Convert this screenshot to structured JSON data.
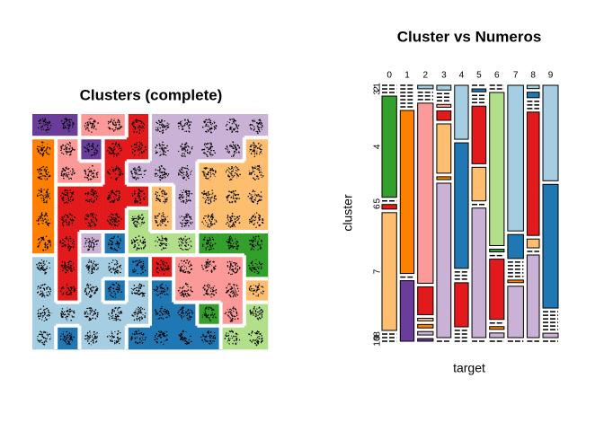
{
  "chart_data": [
    {
      "type": "som",
      "title": "Clusters (complete)",
      "colors": [
        "#A6CEE3",
        "#1F78B4",
        "#B2DF8A",
        "#33A02C",
        "#FB9A99",
        "#E31A1C",
        "#FDBF6F",
        "#FF7F00",
        "#CAB2D6",
        "#6A3D9A"
      ],
      "cells": [
        [
          10,
          10,
          5,
          5,
          6,
          9,
          9,
          9,
          9,
          9
        ],
        [
          8,
          5,
          10,
          6,
          6,
          9,
          9,
          9,
          9,
          7
        ],
        [
          8,
          5,
          5,
          6,
          9,
          9,
          9,
          7,
          7,
          7
        ],
        [
          8,
          6,
          6,
          6,
          6,
          7,
          9,
          7,
          7,
          7
        ],
        [
          8,
          6,
          6,
          6,
          3,
          7,
          9,
          7,
          7,
          7
        ],
        [
          8,
          6,
          9,
          2,
          3,
          3,
          3,
          4,
          4,
          4
        ],
        [
          1,
          6,
          1,
          1,
          2,
          6,
          5,
          5,
          5,
          4
        ],
        [
          1,
          6,
          1,
          2,
          1,
          2,
          5,
          5,
          5,
          7
        ],
        [
          1,
          1,
          1,
          1,
          1,
          2,
          2,
          4,
          5,
          3
        ],
        [
          1,
          2,
          1,
          1,
          2,
          2,
          2,
          2,
          3,
          3
        ]
      ]
    },
    {
      "type": "mosaic",
      "title": "Cluster vs Numeros",
      "xlabel": "target",
      "ylabel": "cluster",
      "categories": [
        "0",
        "1",
        "2",
        "3",
        "4",
        "5",
        "6",
        "7",
        "8",
        "9"
      ],
      "levels": [
        "1",
        "2",
        "3",
        "4",
        "5",
        "6",
        "7",
        "8",
        "9",
        "10"
      ],
      "colors": [
        "#A6CEE3",
        "#1F78B4",
        "#B2DF8A",
        "#33A02C",
        "#FB9A99",
        "#E31A1C",
        "#FDBF6F",
        "#FF7F00",
        "#CAB2D6",
        "#6A3D9A"
      ],
      "counts": [
        [
          0,
          0,
          0,
          110,
          0,
          5,
          128,
          0,
          0,
          0
        ],
        [
          0,
          0,
          0,
          0,
          0,
          0,
          0,
          167,
          0,
          62
        ],
        [
          4,
          0,
          0,
          0,
          207,
          32,
          3,
          4,
          4,
          3
        ],
        [
          5,
          0,
          0,
          0,
          3,
          10,
          52,
          3,
          163,
          0
        ],
        [
          55,
          128,
          0,
          0,
          0,
          45,
          0,
          0,
          0,
          0
        ],
        [
          0,
          3,
          0,
          0,
          0,
          60,
          35,
          0,
          135,
          0
        ],
        [
          0,
          0,
          165,
          3,
          0,
          65,
          0,
          3,
          5,
          0
        ],
        [
          170,
          28,
          0,
          0,
          0,
          0,
          0,
          3,
          60,
          0
        ],
        [
          3,
          5,
          0,
          0,
          0,
          112,
          8,
          0,
          75,
          0
        ],
        [
          108,
          140,
          0,
          0,
          0,
          0,
          0,
          0,
          5,
          0
        ]
      ]
    }
  ]
}
